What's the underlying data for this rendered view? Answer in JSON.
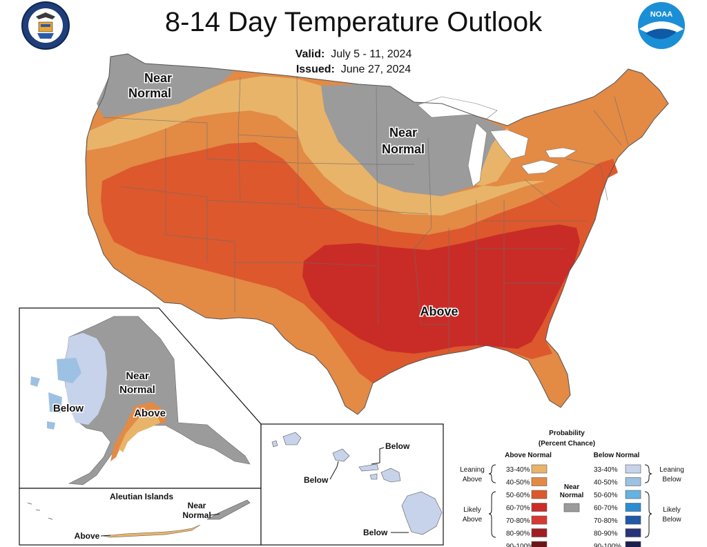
{
  "header": {
    "title": "8-14 Day Temperature Outlook",
    "valid_label": "Valid:",
    "valid_value": "July 5 - 11, 2024",
    "issued_label": "Issued:",
    "issued_value": "June 27, 2024"
  },
  "logos": {
    "left_seal": "department-of-commerce-seal",
    "right_logo": "NOAA"
  },
  "map_labels": {
    "pacific_nw": [
      "Near",
      "Normal"
    ],
    "midwest": [
      "Near",
      "Normal"
    ],
    "south": "Above",
    "alaska_near": [
      "Near",
      "Normal"
    ],
    "alaska_below": "Below",
    "alaska_above": "Above",
    "aleutian_title": "Aleutian Islands",
    "aleutian_near": [
      "Near",
      "Normal"
    ],
    "aleutian_above": "Above",
    "hawaii_below_1": "Below",
    "hawaii_below_2": "Below",
    "hawaii_below_3": "Below"
  },
  "legend": {
    "title_1": "Probability",
    "title_2": "(Percent Chance)",
    "above_header": "Above Normal",
    "below_header": "Below Normal",
    "leaning_above": [
      "Leaning",
      "Above"
    ],
    "likely_above": [
      "Likely",
      "Above"
    ],
    "leaning_below": [
      "Leaning",
      "Below"
    ],
    "likely_below": [
      "Likely",
      "Below"
    ],
    "near_normal": [
      "Near",
      "Normal"
    ],
    "above_items": [
      {
        "range": "33-40%",
        "color": "#e8b46a"
      },
      {
        "range": "40-50%",
        "color": "#e38a45"
      },
      {
        "range": "50-60%",
        "color": "#dd582d"
      },
      {
        "range": "60-70%",
        "color": "#cc2b27"
      },
      {
        "range": "70-80%",
        "color": "#d63b33"
      },
      {
        "range": "80-90%",
        "color": "#a11d22"
      },
      {
        "range": "90-100%",
        "color": "#6b1518"
      }
    ],
    "below_items": [
      {
        "range": "33-40%",
        "color": "#c7d3ea"
      },
      {
        "range": "40-50%",
        "color": "#9dc1e2"
      },
      {
        "range": "50-60%",
        "color": "#64b3e1"
      },
      {
        "range": "60-70%",
        "color": "#2a8cd1"
      },
      {
        "range": "70-80%",
        "color": "#1f5aa6"
      },
      {
        "range": "80-90%",
        "color": "#29357a"
      },
      {
        "range": "90-100%",
        "color": "#1c1f4d"
      }
    ],
    "near_normal_color": "#9b9b9b"
  }
}
